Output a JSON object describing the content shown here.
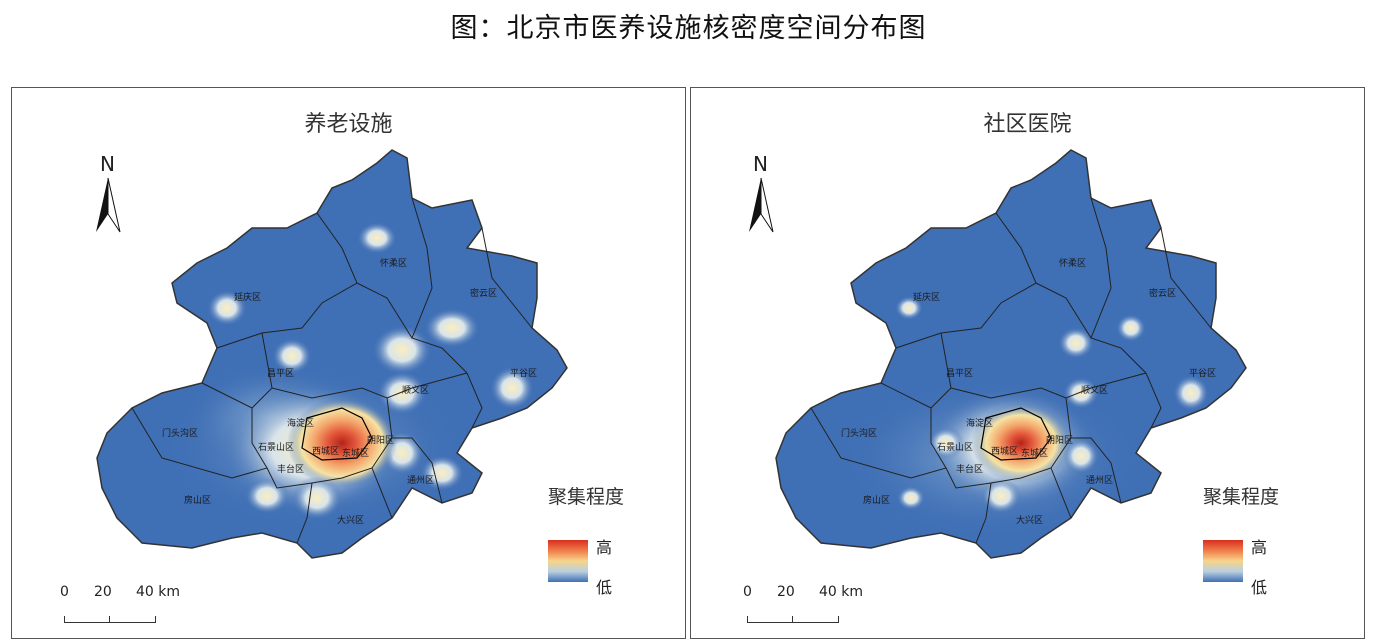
{
  "title": "图：北京市医养设施核密度空间分布图",
  "panels": [
    {
      "title": "养老设施",
      "legend_title": "聚集程度",
      "legend_high": "高",
      "legend_low": "低",
      "north": "N",
      "scale": {
        "labels": [
          "0",
          "20",
          "40 km"
        ]
      }
    },
    {
      "title": "社区医院",
      "legend_title": "聚集程度",
      "legend_high": "高",
      "legend_low": "低",
      "north": "N",
      "scale": {
        "labels": [
          "0",
          "20",
          "40 km"
        ]
      }
    }
  ],
  "districts": [
    "延庆区",
    "怀柔区",
    "密云区",
    "昌平区",
    "顺义区",
    "平谷区",
    "门头沟区",
    "海淀区",
    "朝阳区",
    "西城区",
    "东城区",
    "丰台区",
    "石景山区",
    "房山区",
    "大兴区",
    "通州区"
  ],
  "colors": {
    "high": "#d7301f",
    "mid": "#f7e6a6",
    "low": "#3f6fb5",
    "border": "#333333"
  }
}
